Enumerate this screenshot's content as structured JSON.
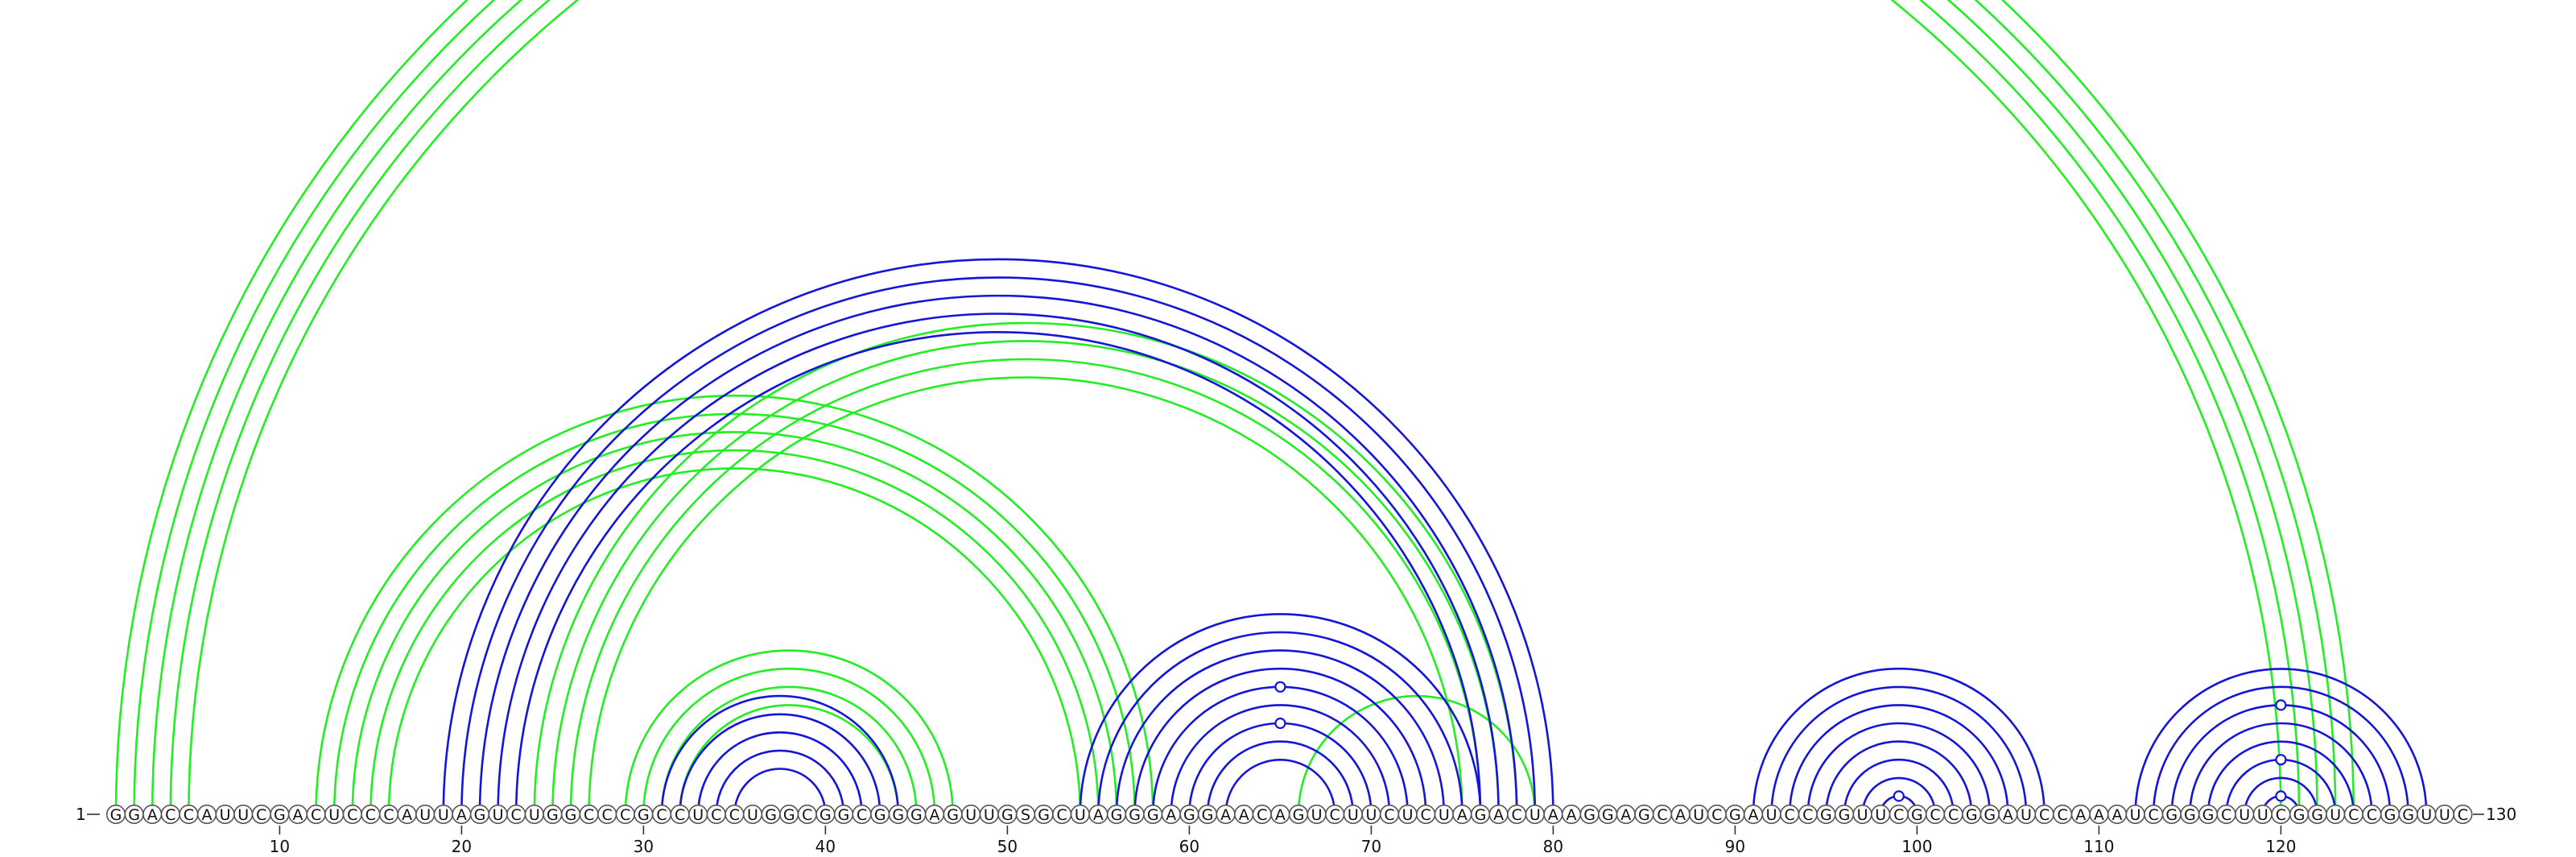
{
  "sequence": "GGACCAUUCGACUCCCAUUAGUCUGGCCCGCCUCCUGGCGGCGGGAGUUGSGCUAGGGAGGAACAGUCUUCUCUAGACUAAGGAGCAUCGAUCCGGUUCGCCGGAUCCAAAUCGGGCUUCGGUCCGGUUC",
  "start_label": "1",
  "end_label": "130",
  "ticks": [
    "10",
    "20",
    "30",
    "40",
    "50",
    "60",
    "70",
    "80",
    "90",
    "100",
    "110",
    "120"
  ],
  "colors": {
    "green": "#22ee22",
    "blue": "#1515d8"
  },
  "arcs": {
    "green": [
      [
        1,
        124
      ],
      [
        2,
        123
      ],
      [
        3,
        122
      ],
      [
        4,
        121
      ],
      [
        5,
        120
      ],
      [
        12,
        58
      ],
      [
        13,
        57
      ],
      [
        14,
        56
      ],
      [
        15,
        55
      ],
      [
        16,
        54
      ],
      [
        24,
        78
      ],
      [
        25,
        77
      ],
      [
        26,
        76
      ],
      [
        27,
        75
      ],
      [
        29,
        47
      ],
      [
        30,
        46
      ],
      [
        31,
        45
      ],
      [
        32,
        44
      ],
      [
        66,
        79
      ]
    ],
    "blue": [
      [
        19,
        80
      ],
      [
        20,
        79
      ],
      [
        21,
        78
      ],
      [
        22,
        77
      ],
      [
        23,
        76
      ],
      [
        31,
        44
      ],
      [
        32,
        43
      ],
      [
        33,
        42
      ],
      [
        34,
        41
      ],
      [
        35,
        40
      ],
      [
        54,
        76
      ],
      [
        55,
        75
      ],
      [
        56,
        74
      ],
      [
        57,
        73
      ],
      [
        58,
        72
      ],
      [
        59,
        71
      ],
      [
        60,
        70
      ],
      [
        61,
        69
      ],
      [
        62,
        68
      ],
      [
        91,
        107
      ],
      [
        92,
        106
      ],
      [
        93,
        105
      ],
      [
        94,
        104
      ],
      [
        95,
        103
      ],
      [
        96,
        102
      ],
      [
        97,
        101
      ],
      [
        98,
        100
      ],
      [
        112,
        128
      ],
      [
        113,
        127
      ],
      [
        114,
        126
      ],
      [
        115,
        125
      ],
      [
        116,
        124
      ],
      [
        117,
        123
      ],
      [
        118,
        122
      ],
      [
        119,
        121
      ]
    ]
  },
  "markers": [
    {
      "pair": [
        2,
        123
      ],
      "color": "green"
    },
    {
      "pair": [
        58,
        72
      ],
      "color": "blue"
    },
    {
      "pair": [
        60,
        70
      ],
      "color": "blue"
    },
    {
      "pair": [
        98,
        100
      ],
      "color": "blue"
    },
    {
      "pair": [
        114,
        126
      ],
      "color": "blue"
    },
    {
      "pair": [
        117,
        123
      ],
      "color": "blue"
    },
    {
      "pair": [
        119,
        121
      ],
      "color": "blue"
    }
  ]
}
